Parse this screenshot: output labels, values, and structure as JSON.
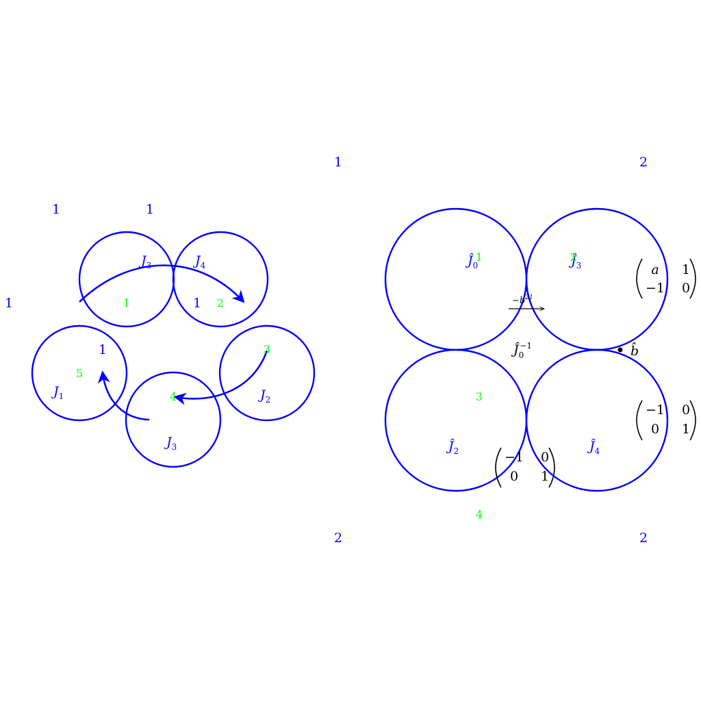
{
  "left_figure": {
    "corner_labels": [
      "1",
      "1",
      "1"
    ],
    "circles": [
      {
        "top_label": "J",
        "top_sub": "3",
        "region_label": "1"
      },
      {
        "top_label": "J",
        "top_sub": "4",
        "region_label": "2",
        "side_label": "1"
      },
      {
        "label": "J",
        "sub": "1",
        "inner_number": "1",
        "region_label": "5"
      },
      {
        "label": "J",
        "sub": "3",
        "region_label": "4"
      },
      {
        "label": "J",
        "sub": "2",
        "region_label": "3"
      }
    ]
  },
  "right_figure": {
    "corner_labels": [
      "1",
      "2",
      "2",
      "2"
    ],
    "circle_labels": [
      {
        "name": "Ĵ",
        "sub": "0",
        "region": "1"
      },
      {
        "name": "Ĵ",
        "sub": "3",
        "region": "2"
      },
      {
        "name": "Ĵ",
        "sub": "2",
        "region": "3"
      },
      {
        "name": "Ĵ",
        "sub": "4",
        "region": "4"
      }
    ],
    "center_label": {
      "name": "Ĵ",
      "sub": "0",
      "sup": "−1"
    },
    "arrow_label": "−b",
    "arrow_label_sup": "21",
    "point_label": "b̂",
    "matrices": [
      {
        "rows": [
          [
            "a",
            "1"
          ],
          [
            "−1",
            "0"
          ]
        ]
      },
      {
        "rows": [
          [
            "−1",
            "0"
          ],
          [
            "0",
            "1"
          ]
        ]
      },
      {
        "rows": [
          [
            "−1",
            "0"
          ],
          [
            "0",
            "1"
          ]
        ]
      }
    ]
  }
}
